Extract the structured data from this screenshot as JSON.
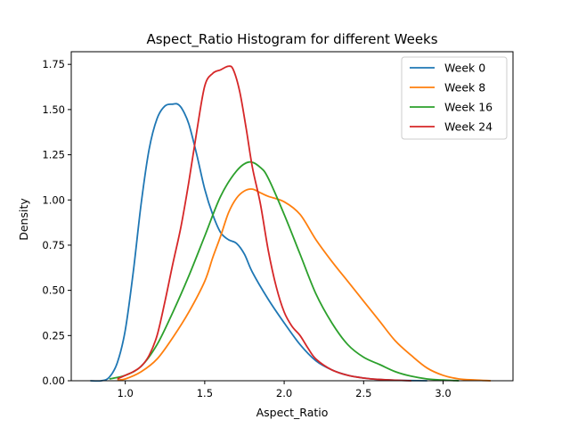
{
  "chart_data": {
    "type": "line",
    "title": "Aspect_Ratio Histogram for different Weeks",
    "xlabel": "Aspect_Ratio",
    "ylabel": "Density",
    "xlim": [
      0.66,
      3.44
    ],
    "ylim": [
      0,
      1.82
    ],
    "xticks": [
      1.0,
      1.5,
      2.0,
      2.5,
      3.0
    ],
    "xtick_labels": [
      "1.0",
      "1.5",
      "2.0",
      "2.5",
      "3.0"
    ],
    "yticks": [
      0,
      0.25,
      0.5,
      0.75,
      1.0,
      1.25,
      1.5,
      1.75
    ],
    "ytick_labels": [
      "0.00",
      "0.25",
      "0.50",
      "0.75",
      "1.00",
      "1.25",
      "1.50",
      "1.75"
    ],
    "grid": false,
    "legend_position": "top-right",
    "series": [
      {
        "name": "Week 0",
        "color": "#1f77b4",
        "x": [
          0.78,
          0.85,
          0.9,
          0.95,
          1.0,
          1.05,
          1.1,
          1.15,
          1.2,
          1.25,
          1.3,
          1.33,
          1.36,
          1.4,
          1.45,
          1.5,
          1.55,
          1.6,
          1.65,
          1.7,
          1.75,
          1.8,
          1.9,
          2.0,
          2.1,
          2.2,
          2.3,
          2.4,
          2.5,
          2.6,
          2.7,
          2.8,
          2.9
        ],
        "y": [
          0.0,
          0.0,
          0.02,
          0.1,
          0.28,
          0.6,
          0.98,
          1.28,
          1.45,
          1.52,
          1.53,
          1.53,
          1.5,
          1.42,
          1.25,
          1.06,
          0.92,
          0.82,
          0.78,
          0.76,
          0.7,
          0.6,
          0.45,
          0.32,
          0.2,
          0.11,
          0.06,
          0.03,
          0.015,
          0.007,
          0.003,
          0.001,
          0.0
        ]
      },
      {
        "name": "Week 8",
        "color": "#ff7f0e",
        "x": [
          0.95,
          1.0,
          1.1,
          1.2,
          1.3,
          1.4,
          1.5,
          1.55,
          1.6,
          1.65,
          1.7,
          1.75,
          1.8,
          1.85,
          1.9,
          2.0,
          2.1,
          2.2,
          2.3,
          2.4,
          2.5,
          2.6,
          2.7,
          2.8,
          2.9,
          3.0,
          3.1,
          3.2,
          3.3
        ],
        "y": [
          0.005,
          0.01,
          0.05,
          0.12,
          0.24,
          0.38,
          0.55,
          0.68,
          0.8,
          0.93,
          1.01,
          1.05,
          1.06,
          1.04,
          1.02,
          0.99,
          0.92,
          0.78,
          0.66,
          0.55,
          0.44,
          0.33,
          0.22,
          0.14,
          0.07,
          0.03,
          0.01,
          0.004,
          0.0
        ]
      },
      {
        "name": "Week 16",
        "color": "#2ca02c",
        "x": [
          0.9,
          1.0,
          1.1,
          1.2,
          1.3,
          1.4,
          1.5,
          1.6,
          1.7,
          1.78,
          1.85,
          1.9,
          2.0,
          2.1,
          2.2,
          2.3,
          2.4,
          2.5,
          2.6,
          2.7,
          2.8,
          2.9,
          3.0,
          3.1
        ],
        "y": [
          0.01,
          0.03,
          0.08,
          0.2,
          0.38,
          0.58,
          0.8,
          1.02,
          1.16,
          1.21,
          1.18,
          1.12,
          0.92,
          0.7,
          0.48,
          0.32,
          0.2,
          0.13,
          0.09,
          0.05,
          0.025,
          0.01,
          0.004,
          0.0
        ]
      },
      {
        "name": "Week 24",
        "color": "#d62728",
        "x": [
          0.95,
          1.0,
          1.05,
          1.1,
          1.15,
          1.2,
          1.25,
          1.3,
          1.35,
          1.4,
          1.45,
          1.5,
          1.55,
          1.6,
          1.65,
          1.68,
          1.72,
          1.76,
          1.8,
          1.85,
          1.9,
          1.95,
          2.0,
          2.05,
          2.1,
          2.15,
          2.2,
          2.3,
          2.4,
          2.5,
          2.6,
          2.7,
          2.8
        ],
        "y": [
          0.01,
          0.03,
          0.05,
          0.08,
          0.14,
          0.25,
          0.44,
          0.65,
          0.85,
          1.1,
          1.38,
          1.63,
          1.7,
          1.72,
          1.74,
          1.72,
          1.6,
          1.4,
          1.18,
          0.98,
          0.72,
          0.52,
          0.38,
          0.3,
          0.25,
          0.18,
          0.12,
          0.06,
          0.03,
          0.015,
          0.007,
          0.003,
          0.0
        ]
      }
    ]
  }
}
